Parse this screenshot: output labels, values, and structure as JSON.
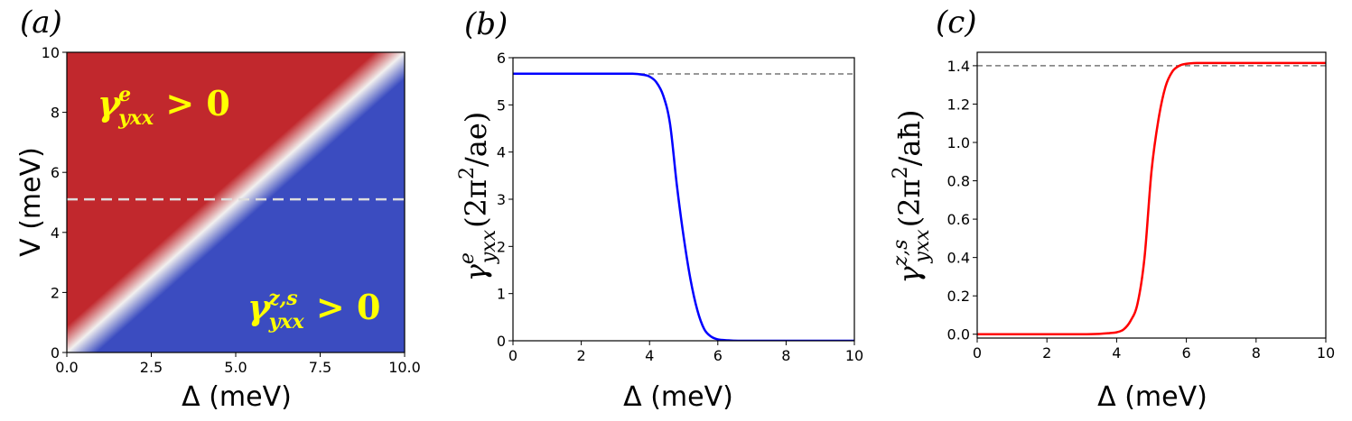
{
  "figure": {
    "panels": [
      {
        "label": "(a)",
        "xlabel": "Δ (meV)",
        "ylabel": "V (meV)",
        "annotations": [
          {
            "text": "γ",
            "sub": "yxx",
            "sup": "e",
            "rest": " > 0"
          },
          {
            "text": "γ",
            "sub": "yxx",
            "sup": "z,s",
            "rest": " > 0"
          }
        ]
      },
      {
        "label": "(b)",
        "xlabel": "Δ (meV)",
        "ylabel": {
          "symbol": "γ",
          "sub": "yxx",
          "sup": "e",
          "unit": "(2π",
          "unit_sup": "2",
          "unit_rest": "/ae)"
        }
      },
      {
        "label": "(c)",
        "xlabel": "Δ (meV)",
        "ylabel": {
          "symbol": "γ",
          "sub": "yxx",
          "sup": "z,s",
          "unit": "(2π",
          "unit_sup": "2",
          "unit_rest": "/aħ)"
        }
      }
    ]
  },
  "chart_data": [
    {
      "type": "heatmap",
      "xlim": [
        0,
        10
      ],
      "ylim": [
        0,
        10
      ],
      "xticks": [
        "0.0",
        "2.5",
        "5.0",
        "7.5",
        "10.0"
      ],
      "xtick_values": [
        0,
        2.5,
        5,
        7.5,
        10
      ],
      "yticks": [
        "0",
        "2",
        "4",
        "6",
        "8",
        "10"
      ],
      "ytick_values": [
        0,
        2,
        4,
        6,
        8,
        10
      ],
      "boundary": "V = Δ",
      "colors": {
        "above": "#c1282d",
        "below": "#3b4cc0",
        "mid": "#f2f0ef"
      },
      "dashed_line_y": 5.1,
      "dashed_color": "#dddddd"
    },
    {
      "type": "line",
      "xlim": [
        0,
        10
      ],
      "ylim": [
        0,
        6
      ],
      "xticks": [
        "0",
        "2",
        "4",
        "6",
        "8",
        "10"
      ],
      "xtick_values": [
        0,
        2,
        4,
        6,
        8,
        10
      ],
      "yticks": [
        "0",
        "1",
        "2",
        "3",
        "4",
        "5",
        "6"
      ],
      "ytick_values": [
        0,
        1,
        2,
        3,
        4,
        5,
        6
      ],
      "series": [
        {
          "color": "#0000ff",
          "x": [
            0,
            1,
            2,
            3,
            3.5,
            3.8,
            4.0,
            4.2,
            4.4,
            4.6,
            4.8,
            5.0,
            5.2,
            5.4,
            5.6,
            5.8,
            6.0,
            6.3,
            6.6,
            7,
            8,
            9,
            10
          ],
          "y": [
            5.66,
            5.66,
            5.66,
            5.66,
            5.66,
            5.64,
            5.6,
            5.48,
            5.2,
            4.6,
            3.3,
            2.2,
            1.3,
            0.65,
            0.25,
            0.09,
            0.03,
            0.01,
            0.0,
            0.0,
            0.0,
            0.0,
            0.0
          ]
        }
      ],
      "hline": {
        "y": 5.657,
        "color": "#777777",
        "style": "dashed"
      }
    },
    {
      "type": "line",
      "xlim": [
        0,
        10
      ],
      "ylim": [
        -0.02,
        1.47
      ],
      "xticks": [
        "0",
        "2",
        "4",
        "6",
        "8",
        "10"
      ],
      "xtick_values": [
        0,
        2,
        4,
        6,
        8,
        10
      ],
      "yticks": [
        "0.0",
        "0.2",
        "0.4",
        "0.6",
        "0.8",
        "1.0",
        "1.2",
        "1.4"
      ],
      "ytick_values": [
        0,
        0.2,
        0.4,
        0.6,
        0.8,
        1.0,
        1.2,
        1.4
      ],
      "series": [
        {
          "color": "#ff0000",
          "x": [
            0,
            1,
            2,
            3,
            3.5,
            3.8,
            4.0,
            4.2,
            4.4,
            4.6,
            4.8,
            5.0,
            5.2,
            5.4,
            5.6,
            5.8,
            6.0,
            6.3,
            6.6,
            7,
            8,
            9,
            10
          ],
          "y": [
            0.0,
            0.0,
            0.0,
            0.0,
            0.002,
            0.006,
            0.01,
            0.025,
            0.07,
            0.16,
            0.4,
            0.85,
            1.12,
            1.29,
            1.37,
            1.4,
            1.41,
            1.414,
            1.414,
            1.414,
            1.414,
            1.414,
            1.414
          ]
        }
      ],
      "hline": {
        "y": 1.4,
        "color": "#777777",
        "style": "dashed"
      }
    }
  ]
}
